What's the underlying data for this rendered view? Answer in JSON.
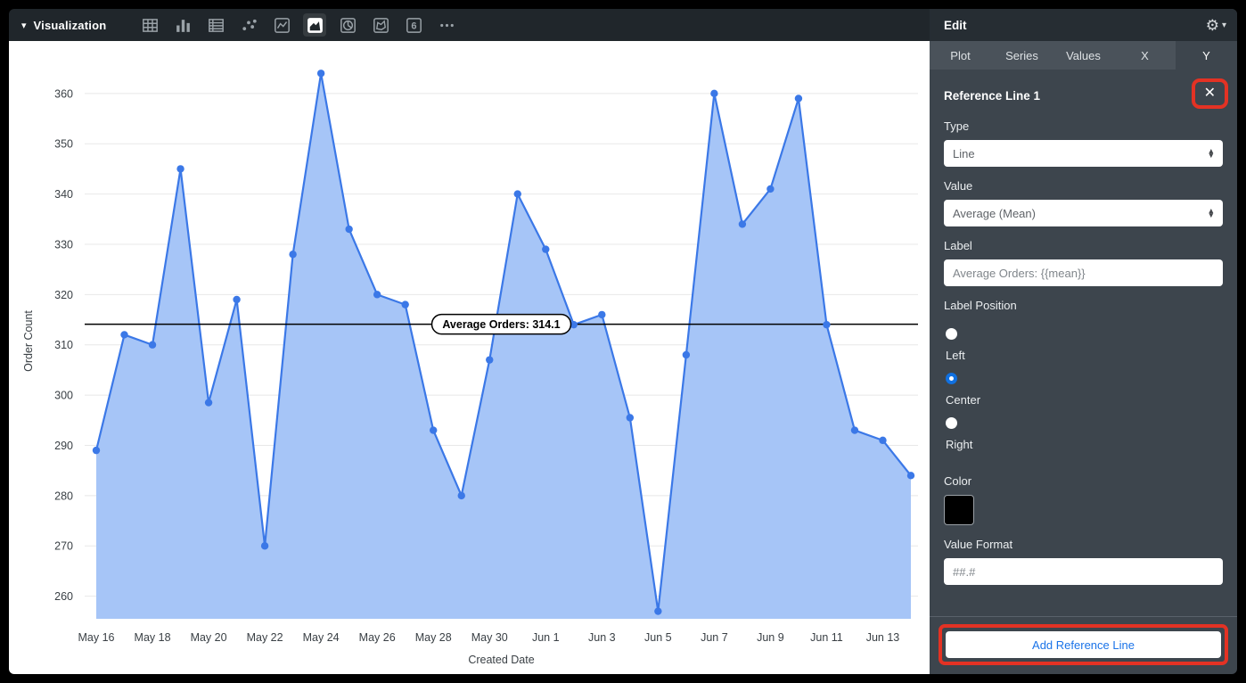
{
  "toolbar": {
    "title": "Visualization",
    "viz_icons": [
      {
        "name": "table"
      },
      {
        "name": "column-chart"
      },
      {
        "name": "report-table"
      },
      {
        "name": "scatter"
      },
      {
        "name": "line-chart"
      },
      {
        "name": "area-chart",
        "selected": true
      },
      {
        "name": "pie-chart"
      },
      {
        "name": "map"
      },
      {
        "name": "single-value",
        "glyph": "6"
      },
      {
        "name": "more"
      }
    ]
  },
  "panel": {
    "title": "Edit",
    "tabs": [
      {
        "label": "Plot",
        "active": false
      },
      {
        "label": "Series",
        "active": false
      },
      {
        "label": "Values",
        "active": false
      },
      {
        "label": "X",
        "active": false
      },
      {
        "label": "Y",
        "active": true
      }
    ],
    "section_title": "Reference Line 1",
    "close_icon": "✕",
    "fields": {
      "type": {
        "label": "Type",
        "value": "Line"
      },
      "value": {
        "label": "Value",
        "value": "Average (Mean)"
      },
      "label": {
        "label": "Label",
        "value": "Average Orders: {{mean}}"
      },
      "label_position": {
        "label": "Label Position",
        "options": [
          "Left",
          "Center",
          "Right"
        ],
        "selected": "Center"
      },
      "color": {
        "label": "Color",
        "value": "#000000"
      },
      "value_format": {
        "label": "Value Format",
        "value": "##.#"
      }
    },
    "add_button": "Add Reference Line",
    "accent_blue": "#1a73e8",
    "annotation_color": "#e33224"
  },
  "chart_data": {
    "type": "area",
    "title": "",
    "xlabel": "Created Date",
    "ylabel": "Order Count",
    "x": [
      "May 16",
      "May 17",
      "May 18",
      "May 19",
      "May 20",
      "May 21",
      "May 22",
      "May 23",
      "May 24",
      "May 25",
      "May 26",
      "May 27",
      "May 28",
      "May 29",
      "May 30",
      "May 31",
      "Jun 1",
      "Jun 2",
      "Jun 3",
      "Jun 4",
      "Jun 5",
      "Jun 6",
      "Jun 7",
      "Jun 8",
      "Jun 9",
      "Jun 10",
      "Jun 11",
      "Jun 12",
      "Jun 13",
      "Jun 14"
    ],
    "values": [
      289,
      312,
      310,
      345,
      298.5,
      319,
      270,
      328,
      364,
      333,
      320,
      318,
      293,
      280,
      307,
      340,
      329,
      314,
      316,
      295.5,
      257,
      308,
      360,
      334,
      341,
      359,
      314,
      293,
      291,
      284
    ],
    "x_tick_every": 2,
    "yticks": [
      260,
      270,
      280,
      290,
      300,
      310,
      320,
      330,
      340,
      350,
      360
    ],
    "ylim": [
      255.5,
      366
    ],
    "grid": true,
    "legend": "none",
    "line_color": "#3b78e7",
    "fill_color": "#a6c5f7",
    "reference_line": {
      "value": 314.1,
      "label": "Average Orders: 314.1",
      "color": "#000000"
    }
  }
}
